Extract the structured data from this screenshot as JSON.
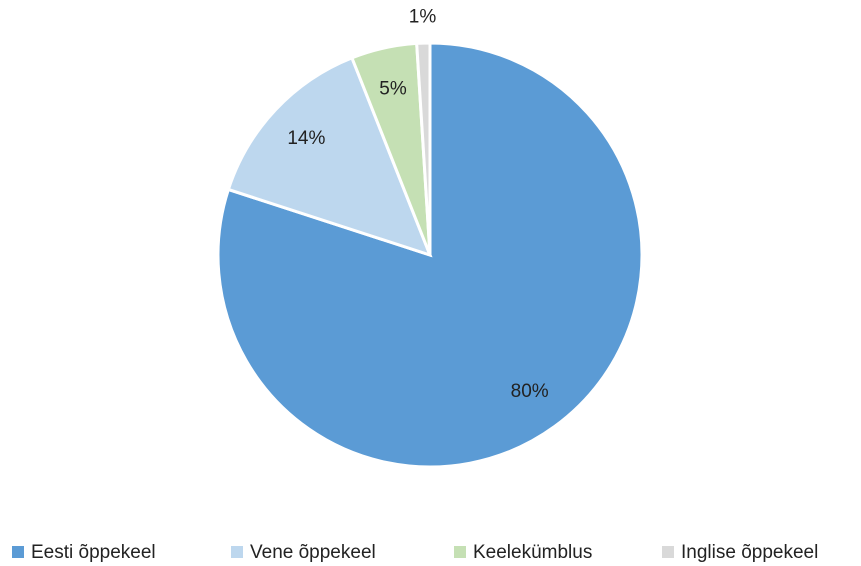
{
  "chart_data": {
    "type": "pie",
    "categories": [
      "Eesti õppekeel",
      "Vene õppekeel",
      "Keelekümblus",
      "Inglise õppekeel"
    ],
    "values": [
      80,
      14,
      5,
      1
    ],
    "value_labels": [
      "80%",
      "14%",
      "5%",
      "1%"
    ],
    "colors": [
      "#5b9bd5",
      "#bdd7ee",
      "#c5e0b4",
      "#d9d9d9"
    ],
    "legend": "bottom"
  }
}
